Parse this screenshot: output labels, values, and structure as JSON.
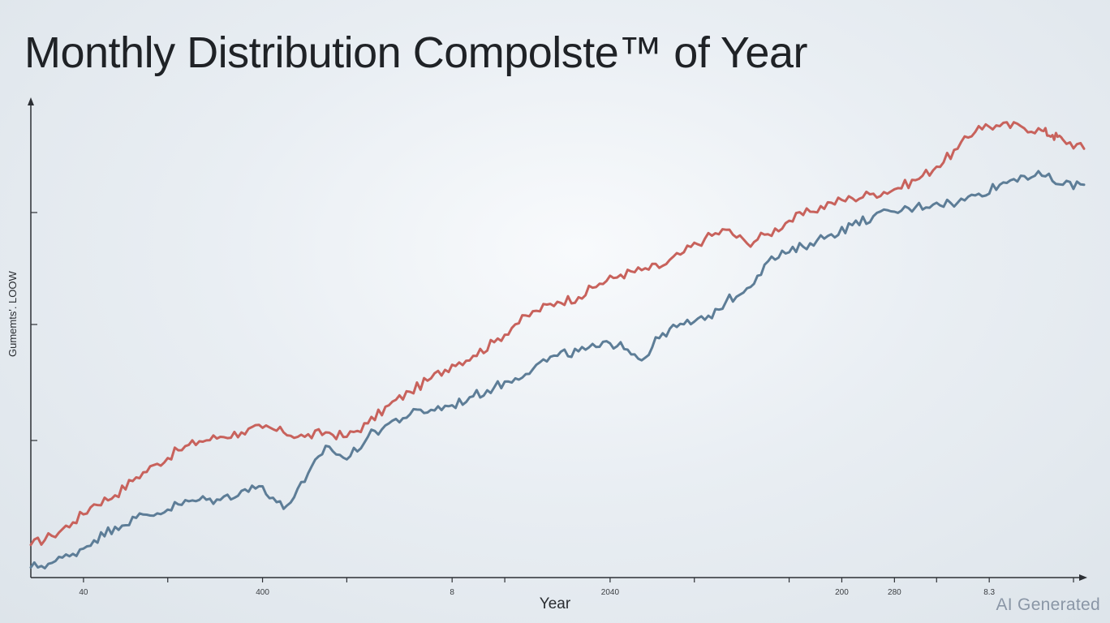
{
  "chart_data": {
    "type": "line",
    "title": "Monthly Distribution Compolste™ of Year",
    "xlabel": "Year",
    "ylabel": "Gumemts'. LOOW",
    "x_tick_labels": [
      "40",
      "400",
      "8",
      "2040",
      "200",
      "280",
      "8.3"
    ],
    "x_tick_positions": [
      0.05,
      0.22,
      0.4,
      0.55,
      0.77,
      0.82,
      0.91
    ],
    "xlim": [
      0,
      1
    ],
    "ylim": [
      0,
      100
    ],
    "grid": false,
    "legend": "none",
    "series": [
      {
        "color": "#c8625c",
        "x": [
          0.0,
          0.02,
          0.04,
          0.06,
          0.08,
          0.1,
          0.12,
          0.14,
          0.16,
          0.18,
          0.2,
          0.22,
          0.24,
          0.26,
          0.28,
          0.3,
          0.32,
          0.34,
          0.36,
          0.38,
          0.4,
          0.42,
          0.44,
          0.46,
          0.48,
          0.5,
          0.52,
          0.54,
          0.56,
          0.58,
          0.6,
          0.62,
          0.64,
          0.66,
          0.68,
          0.7,
          0.72,
          0.74,
          0.76,
          0.78,
          0.8,
          0.82,
          0.84,
          0.86,
          0.88,
          0.9,
          0.92,
          0.94,
          0.96,
          0.97,
          0.98,
          1.0
        ],
        "values": [
          6,
          8,
          11,
          15,
          17,
          21,
          24,
          27,
          29,
          30,
          31,
          32,
          31,
          30,
          31,
          30,
          33,
          37,
          40,
          43,
          46,
          48,
          51,
          55,
          58,
          60,
          61,
          64,
          66,
          67,
          68,
          71,
          74,
          76,
          73,
          75,
          78,
          80,
          82,
          83,
          84,
          85,
          87,
          90,
          94,
          99,
          99,
          99,
          98,
          97,
          96,
          94
        ]
      },
      {
        "color": "#5d7d97",
        "x": [
          0.0,
          0.02,
          0.04,
          0.06,
          0.08,
          0.1,
          0.12,
          0.14,
          0.16,
          0.18,
          0.2,
          0.22,
          0.24,
          0.26,
          0.28,
          0.3,
          0.32,
          0.34,
          0.36,
          0.38,
          0.4,
          0.42,
          0.44,
          0.46,
          0.48,
          0.5,
          0.52,
          0.54,
          0.56,
          0.58,
          0.6,
          0.62,
          0.64,
          0.66,
          0.68,
          0.7,
          0.72,
          0.74,
          0.76,
          0.78,
          0.8,
          0.82,
          0.84,
          0.86,
          0.88,
          0.9,
          0.92,
          0.94,
          0.96,
          0.98,
          1.0
        ],
        "values": [
          1,
          2,
          4,
          7,
          10,
          12,
          13,
          15,
          16,
          16,
          18,
          19,
          14,
          20,
          28,
          25,
          30,
          33,
          35,
          36,
          37,
          39,
          41,
          43,
          46,
          48,
          49,
          50,
          51,
          47,
          53,
          55,
          56,
          60,
          63,
          69,
          71,
          73,
          75,
          77,
          79,
          80,
          81,
          82,
          82,
          84,
          86,
          88,
          88,
          86,
          86
        ]
      }
    ]
  },
  "watermark": "AI Generated"
}
